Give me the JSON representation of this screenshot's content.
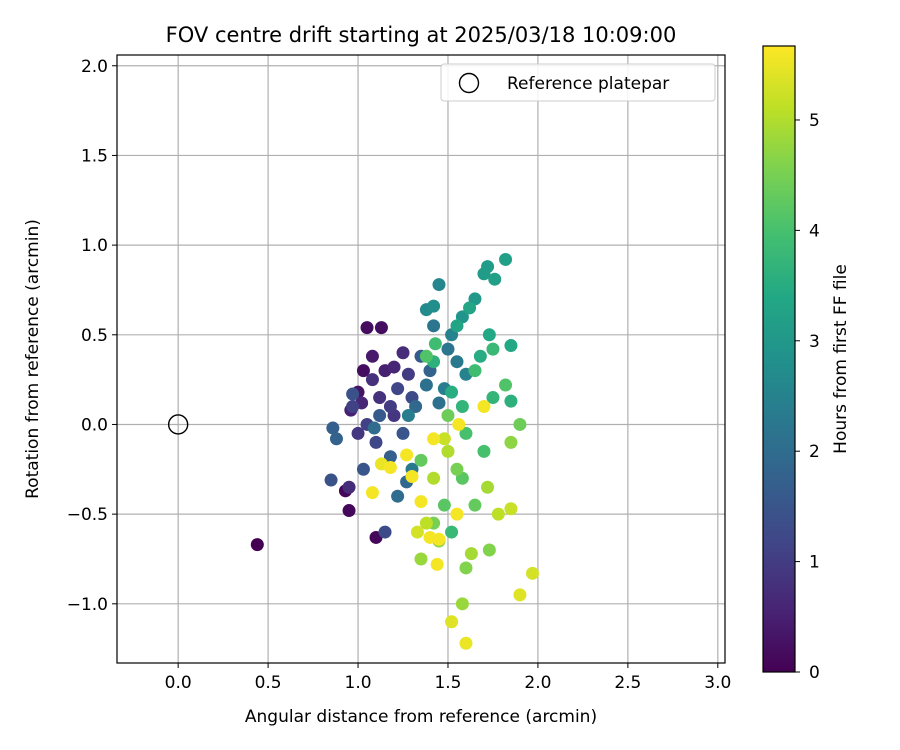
{
  "chart_data": {
    "type": "scatter",
    "title": "FOV centre drift starting at 2025/03/18 10:09:00",
    "xlabel": "Angular distance from reference (arcmin)",
    "ylabel": "Rotation from reference (arcmin)",
    "xlim": [
      -0.34,
      3.04
    ],
    "ylim": [
      -1.33,
      2.06
    ],
    "xticks": [
      "0.0",
      "0.5",
      "1.0",
      "1.5",
      "2.0",
      "2.5",
      "3.0"
    ],
    "yticks": [
      "−1.0",
      "−0.5",
      "0.0",
      "0.5",
      "1.0",
      "1.5",
      "2.0"
    ],
    "grid": true,
    "legend": {
      "position": "top-right",
      "entries": [
        "Reference platepar"
      ]
    },
    "colorbar": {
      "label": "Hours from first FF file",
      "range": [
        0,
        5.67
      ],
      "ticks": [
        "0",
        "1",
        "2",
        "3",
        "4",
        "5"
      ],
      "colormap": "viridis"
    },
    "reference_point": {
      "x": 0.0,
      "y": 0.0
    },
    "points": [
      [
        0.44,
        -0.67,
        0.0
      ],
      [
        0.95,
        -0.48,
        0.1
      ],
      [
        0.93,
        -0.37,
        0.1
      ],
      [
        1.1,
        -0.63,
        0.1
      ],
      [
        1.05,
        0.54,
        0.2
      ],
      [
        1.13,
        0.54,
        0.2
      ],
      [
        1.03,
        0.3,
        0.2
      ],
      [
        1.0,
        0.18,
        0.3
      ],
      [
        1.08,
        0.38,
        0.4
      ],
      [
        1.15,
        0.3,
        0.5
      ],
      [
        0.96,
        0.08,
        0.5
      ],
      [
        1.02,
        0.12,
        0.6
      ],
      [
        1.2,
        0.32,
        0.6
      ],
      [
        1.25,
        0.4,
        0.7
      ],
      [
        0.95,
        -0.35,
        0.7
      ],
      [
        1.08,
        0.25,
        0.8
      ],
      [
        1.12,
        0.15,
        0.8
      ],
      [
        1.2,
        0.05,
        0.9
      ],
      [
        1.0,
        -0.05,
        0.9
      ],
      [
        1.18,
        0.1,
        1.0
      ],
      [
        1.28,
        0.28,
        1.0
      ],
      [
        1.05,
        0.0,
        1.1
      ],
      [
        0.97,
        0.1,
        1.1
      ],
      [
        1.1,
        -0.1,
        1.2
      ],
      [
        1.22,
        0.2,
        1.2
      ],
      [
        1.3,
        0.15,
        1.3
      ],
      [
        1.15,
        -0.6,
        1.3
      ],
      [
        0.85,
        -0.31,
        1.4
      ],
      [
        0.97,
        0.17,
        1.4
      ],
      [
        1.03,
        -0.25,
        1.5
      ],
      [
        1.25,
        -0.05,
        1.5
      ],
      [
        1.35,
        0.38,
        1.6
      ],
      [
        1.12,
        0.05,
        1.6
      ],
      [
        1.18,
        -0.18,
        1.7
      ],
      [
        0.86,
        -0.02,
        1.7
      ],
      [
        0.88,
        -0.08,
        1.8
      ],
      [
        1.4,
        0.3,
        1.8
      ],
      [
        1.27,
        -0.32,
        1.9
      ],
      [
        1.32,
        0.1,
        1.9
      ],
      [
        1.22,
        -0.4,
        2.0
      ],
      [
        1.09,
        -0.02,
        2.0
      ],
      [
        1.38,
        0.22,
        2.1
      ],
      [
        1.45,
        0.12,
        2.1
      ],
      [
        1.42,
        0.55,
        2.2
      ],
      [
        1.5,
        0.42,
        2.2
      ],
      [
        1.3,
        -0.25,
        2.3
      ],
      [
        1.55,
        0.35,
        2.3
      ],
      [
        1.48,
        0.2,
        2.4
      ],
      [
        1.28,
        0.05,
        2.4
      ],
      [
        1.6,
        0.28,
        2.5
      ],
      [
        1.52,
        0.5,
        2.5
      ],
      [
        1.45,
        0.78,
        2.6
      ],
      [
        1.38,
        0.64,
        2.7
      ],
      [
        1.42,
        0.66,
        2.8
      ],
      [
        1.58,
        0.6,
        2.9
      ],
      [
        1.65,
        0.7,
        3.0
      ],
      [
        1.7,
        0.84,
        3.1
      ],
      [
        1.72,
        0.88,
        3.1
      ],
      [
        1.82,
        0.92,
        3.2
      ],
      [
        1.76,
        0.81,
        3.2
      ],
      [
        1.62,
        0.65,
        3.3
      ],
      [
        1.55,
        0.55,
        3.3
      ],
      [
        1.85,
        0.44,
        3.4
      ],
      [
        1.73,
        0.5,
        3.4
      ],
      [
        1.52,
        0.18,
        3.5
      ],
      [
        1.68,
        0.38,
        3.5
      ],
      [
        1.85,
        0.13,
        3.6
      ],
      [
        1.42,
        0.35,
        3.6
      ],
      [
        1.58,
        0.1,
        3.7
      ],
      [
        1.75,
        0.15,
        3.7
      ],
      [
        1.52,
        -0.6,
        3.8
      ],
      [
        1.75,
        0.42,
        3.8
      ],
      [
        1.65,
        0.3,
        3.9
      ],
      [
        1.43,
        0.45,
        3.9
      ],
      [
        1.6,
        -0.05,
        4.0
      ],
      [
        1.7,
        -0.15,
        4.0
      ],
      [
        1.82,
        0.22,
        4.1
      ],
      [
        1.38,
        0.38,
        4.1
      ],
      [
        1.48,
        -0.45,
        4.2
      ],
      [
        1.58,
        -0.3,
        4.2
      ],
      [
        1.35,
        -0.2,
        4.3
      ],
      [
        1.65,
        -0.45,
        4.3
      ],
      [
        1.9,
        0.0,
        4.4
      ],
      [
        1.5,
        0.05,
        4.4
      ],
      [
        1.42,
        -0.55,
        4.5
      ],
      [
        1.55,
        -0.25,
        4.5
      ],
      [
        1.73,
        -0.7,
        4.6
      ],
      [
        1.6,
        -0.8,
        4.6
      ],
      [
        1.85,
        -0.1,
        4.7
      ],
      [
        1.45,
        -0.65,
        4.7
      ],
      [
        1.35,
        -0.75,
        4.8
      ],
      [
        1.58,
        -1.0,
        4.8
      ],
      [
        1.63,
        -0.72,
        4.9
      ],
      [
        1.72,
        -0.35,
        4.9
      ],
      [
        1.5,
        -0.15,
        5.0
      ],
      [
        1.42,
        -0.3,
        5.0
      ],
      [
        1.78,
        -0.5,
        5.1
      ],
      [
        1.38,
        -0.55,
        5.1
      ],
      [
        1.85,
        -0.47,
        5.2
      ],
      [
        1.48,
        -0.08,
        5.2
      ],
      [
        1.97,
        -0.83,
        5.3
      ],
      [
        1.33,
        -0.6,
        5.3
      ],
      [
        1.9,
        -0.95,
        5.4
      ],
      [
        1.52,
        -1.1,
        5.4
      ],
      [
        1.6,
        -1.22,
        5.5
      ],
      [
        1.13,
        -0.22,
        5.5
      ],
      [
        1.08,
        -0.38,
        5.6
      ],
      [
        1.45,
        -0.64,
        5.6
      ],
      [
        1.56,
        0.0,
        5.6
      ],
      [
        1.7,
        0.1,
        5.6
      ],
      [
        1.27,
        -0.17,
        5.6
      ],
      [
        1.35,
        -0.43,
        5.6
      ],
      [
        1.42,
        -0.08,
        5.6
      ],
      [
        1.3,
        -0.29,
        5.6
      ],
      [
        1.4,
        -0.63,
        5.6
      ],
      [
        1.55,
        -0.5,
        5.6
      ],
      [
        1.18,
        -0.24,
        5.6
      ],
      [
        1.44,
        -0.78,
        5.6
      ]
    ]
  }
}
